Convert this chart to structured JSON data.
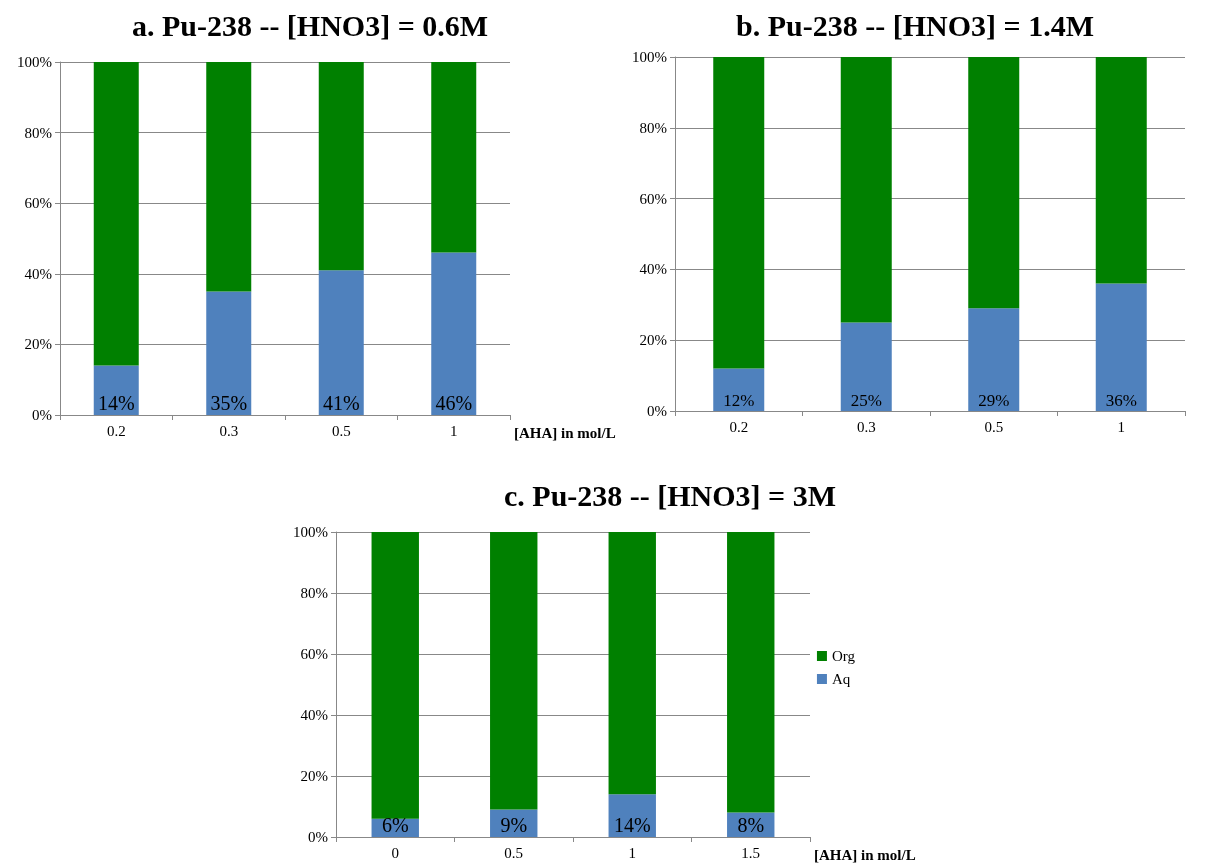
{
  "chart_data": [
    {
      "type": "bar",
      "title": "a. Pu-238 -- [HNO3] = 0.6M",
      "xlabel": "[AHA] in mol/L",
      "categories": [
        "0.2",
        "0.3",
        "0.5",
        "1"
      ],
      "stacked": true,
      "ylim": [
        0,
        100
      ],
      "yticks": [
        {
          "value": 0,
          "label": "0%"
        },
        {
          "value": 20,
          "label": "20%"
        },
        {
          "value": 40,
          "label": "40%"
        },
        {
          "value": 60,
          "label": "60%"
        },
        {
          "value": 80,
          "label": "80%"
        },
        {
          "value": 100,
          "label": "100%"
        }
      ],
      "grid": "y",
      "legend": false,
      "series": [
        {
          "color": "#4f81bd",
          "values": [
            14,
            35,
            41,
            46
          ],
          "value_labels": [
            "14%",
            "35%",
            "41%",
            "46%"
          ]
        },
        {
          "color": "#008000",
          "values": [
            86,
            65,
            59,
            54
          ]
        }
      ]
    },
    {
      "type": "bar",
      "title": "b. Pu-238 -- [HNO3] = 1.4M",
      "categories": [
        "0.2",
        "0.3",
        "0.5",
        "1"
      ],
      "stacked": true,
      "ylim": [
        0,
        100
      ],
      "yticks": [
        {
          "value": 0,
          "label": "0%"
        },
        {
          "value": 20,
          "label": "20%"
        },
        {
          "value": 40,
          "label": "40%"
        },
        {
          "value": 60,
          "label": "60%"
        },
        {
          "value": 80,
          "label": "80%"
        },
        {
          "value": 100,
          "label": "100%"
        }
      ],
      "grid": "y",
      "legend": false,
      "series": [
        {
          "color": "#4f81bd",
          "values": [
            12,
            25,
            29,
            36
          ],
          "value_labels": [
            "12%",
            "25%",
            "29%",
            "36%"
          ]
        },
        {
          "color": "#008000",
          "values": [
            88,
            75,
            71,
            64
          ]
        }
      ]
    },
    {
      "type": "bar",
      "title": "c. Pu-238 -- [HNO3] = 3M",
      "xlabel": "[AHA] in mol/L",
      "categories": [
        "0",
        "0.5",
        "1",
        "1.5"
      ],
      "stacked": true,
      "ylim": [
        0,
        100
      ],
      "yticks": [
        {
          "value": 0,
          "label": "0%"
        },
        {
          "value": 20,
          "label": "20%"
        },
        {
          "value": 40,
          "label": "40%"
        },
        {
          "value": 60,
          "label": "60%"
        },
        {
          "value": 80,
          "label": "80%"
        },
        {
          "value": 100,
          "label": "100%"
        }
      ],
      "grid": "y",
      "legend": "right",
      "series": [
        {
          "name": "Aq",
          "color": "#4f81bd",
          "values": [
            6,
            9,
            14,
            8
          ],
          "value_labels": [
            "6%",
            "9%",
            "14%",
            "8%"
          ]
        },
        {
          "name": "Org",
          "color": "#008000",
          "values": [
            94,
            91,
            86,
            92
          ]
        }
      ]
    }
  ]
}
